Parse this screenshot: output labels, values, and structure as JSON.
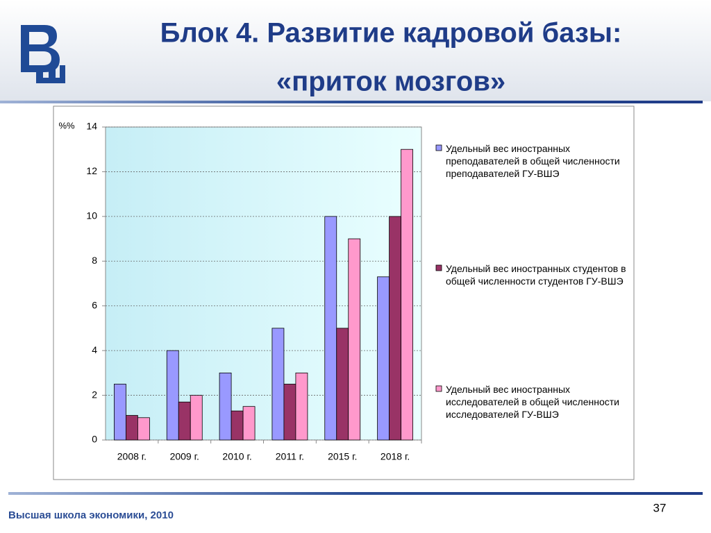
{
  "slide": {
    "title_line1": "Блок 4. Развитие кадровой базы:",
    "title_line2": "«приток мозгов»",
    "footer": "Высшая школа экономики, 2010",
    "page_number": 37
  },
  "chart_data": {
    "type": "bar",
    "y_label": "%%",
    "categories": [
      "2008 г.",
      "2009 г.",
      "2010 г.",
      "2011 г.",
      "2015 г.",
      "2018 г."
    ],
    "series": [
      {
        "name": "Удельный вес иностранных преподавателей в общей численности преподавателей ГУ-ВШЭ",
        "color": "#9999ff",
        "values": [
          2.5,
          4,
          3,
          5,
          10,
          7.3
        ]
      },
      {
        "name": "Удельный вес иностранных студентов  в общей численности студентов ГУ-ВШЭ",
        "color": "#993366",
        "values": [
          1.1,
          1.7,
          1.3,
          2.5,
          5,
          10
        ]
      },
      {
        "name": "Удельный вес иностранных исследователей в общей численности исследователей ГУ-ВШЭ",
        "color": "#ff99cc",
        "values": [
          1,
          2,
          1.5,
          3,
          9,
          13
        ]
      }
    ],
    "ylim": [
      0,
      14
    ],
    "yticks": [
      0,
      2,
      4,
      6,
      8,
      10,
      12,
      14
    ],
    "grid": true
  }
}
